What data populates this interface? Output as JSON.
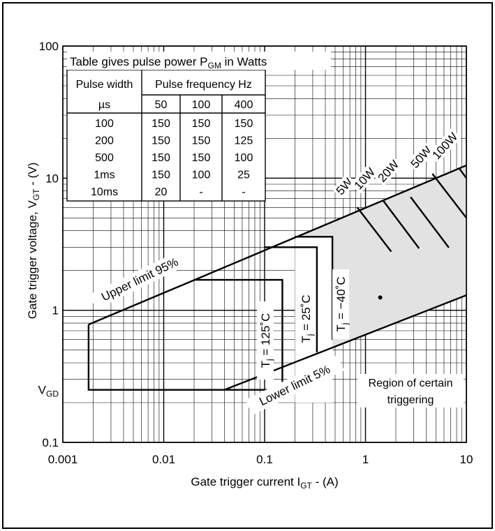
{
  "chart_data": {
    "type": "line",
    "x_scale": "log",
    "y_scale": "log",
    "xlim": [
      0.001,
      10
    ],
    "ylim": [
      0.1,
      100
    ],
    "grid": true,
    "xlabel": "Gate trigger current I",
    "xlabel_sub": "GT",
    "xlabel_suffix": " - (A)",
    "ylabel": "Gate trigger voltage, V",
    "ylabel_sub": "GT",
    "ylabel_suffix": " - (V)",
    "x_ticks": [
      {
        "value": 0.001,
        "label": "0.001"
      },
      {
        "value": 0.01,
        "label": "0.01"
      },
      {
        "value": 0.1,
        "label": "0.1"
      },
      {
        "value": 1,
        "label": "1"
      },
      {
        "value": 10,
        "label": "10"
      }
    ],
    "y_ticks": [
      {
        "value": 0.1,
        "label": "0.1"
      },
      {
        "value": 1,
        "label": "1"
      },
      {
        "value": 10,
        "label": "10"
      },
      {
        "value": 100,
        "label": "100"
      }
    ],
    "vgd_label": {
      "text": "V",
      "sub": "GD",
      "value": 0.25
    },
    "series": [
      {
        "name": "Upper limit 95%",
        "points": [
          [
            0.0018,
            0.78
          ],
          [
            10,
            12.5
          ]
        ]
      },
      {
        "name": "Lower limit 5%",
        "points": [
          [
            0.04,
            0.25
          ],
          [
            10,
            1.3
          ]
        ]
      },
      {
        "name": "T_j = 125°C",
        "points": [
          [
            0.0018,
            0.78
          ],
          [
            0.0018,
            0.25
          ],
          [
            0.15,
            0.25
          ],
          [
            0.15,
            1.7
          ],
          [
            0.02,
            1.7
          ]
        ]
      },
      {
        "name": "T_j = 25°C",
        "points": [
          [
            0.33,
            0.48
          ],
          [
            0.33,
            3.0
          ],
          [
            0.1,
            3.0
          ]
        ]
      },
      {
        "name": "T_j = -40°C",
        "points": [
          [
            0.47,
            0.6
          ],
          [
            0.47,
            3.6
          ],
          [
            0.2,
            3.6
          ]
        ]
      },
      {
        "name": "5W",
        "points": [
          [
            0.83,
            6.0
          ],
          [
            1.8,
            2.78
          ]
        ]
      },
      {
        "name": "10W",
        "points": [
          [
            1.5,
            6.75
          ],
          [
            3.4,
            2.94
          ]
        ]
      },
      {
        "name": "20W",
        "points": [
          [
            2.8,
            7.2
          ],
          [
            6.7,
            2.98
          ]
        ]
      },
      {
        "name": "50W",
        "points": [
          [
            4.6,
            10.8
          ],
          [
            10,
            5.0
          ]
        ]
      },
      {
        "name": "100W",
        "points": [
          [
            8.4,
            12.0
          ],
          [
            10,
            10.0
          ]
        ]
      }
    ],
    "region_label": {
      "line1": "Region of certain",
      "line2": "triggering",
      "marker": [
        1.4,
        1.25
      ]
    },
    "curve_labels": {
      "upper": "Upper limit 95%",
      "lower": "Lower limit 5%",
      "tj125": "T",
      "tj125_sub": "j",
      "tj125_suffix": " = 125˚C",
      "tj25": "T",
      "tj25_sub": "j",
      "tj25_suffix": " = 25˚C",
      "tjm40": "T",
      "tjm40_sub": "j",
      "tjm40_suffix": " = −40˚C",
      "w5": "5W",
      "w10": "10W",
      "w20": "20W",
      "w50": "50W",
      "w100": "100W"
    },
    "table": {
      "title": "Table gives pulse power P",
      "title_sub": "GM",
      "title_suffix": " in Watts",
      "header1": [
        "Pulse width",
        "Pulse frequency Hz"
      ],
      "header2": [
        "µs",
        "50",
        "100",
        "400"
      ],
      "rows": [
        [
          "100",
          "150",
          "150",
          "150"
        ],
        [
          "200",
          "150",
          "150",
          "125"
        ],
        [
          "500",
          "150",
          "150",
          "100"
        ],
        [
          "1ms",
          "150",
          "100",
          "25"
        ],
        [
          "10ms",
          "20",
          "-",
          "-"
        ]
      ]
    }
  }
}
